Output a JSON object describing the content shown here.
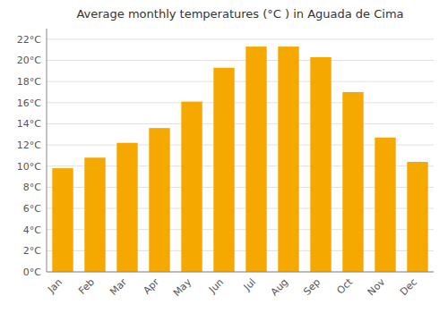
{
  "chart_data": {
    "type": "bar",
    "title": "Average monthly temperatures (°C ) in Aguada de Cima",
    "categories": [
      "Jan",
      "Feb",
      "Mar",
      "Apr",
      "May",
      "Jun",
      "Jul",
      "Aug",
      "Sep",
      "Oct",
      "Nov",
      "Dec"
    ],
    "values": [
      9.8,
      10.8,
      12.2,
      13.6,
      16.1,
      19.3,
      21.3,
      21.3,
      20.3,
      17.0,
      12.7,
      10.4
    ],
    "color": "#F5A800",
    "ylim": [
      0,
      23
    ],
    "yticks": [
      {
        "value": 0,
        "label": "0°C"
      },
      {
        "value": 2,
        "label": "2°C"
      },
      {
        "value": 4,
        "label": "4°C"
      },
      {
        "value": 6,
        "label": "6°C"
      },
      {
        "value": 8,
        "label": "8°C"
      },
      {
        "value": 10,
        "label": "10°C"
      },
      {
        "value": 12,
        "label": "12°C"
      },
      {
        "value": 14,
        "label": "14°C"
      },
      {
        "value": 16,
        "label": "16°C"
      },
      {
        "value": 18,
        "label": "18°C"
      },
      {
        "value": 20,
        "label": "20°C"
      },
      {
        "value": 22,
        "label": "22°C"
      }
    ],
    "grid": true
  }
}
